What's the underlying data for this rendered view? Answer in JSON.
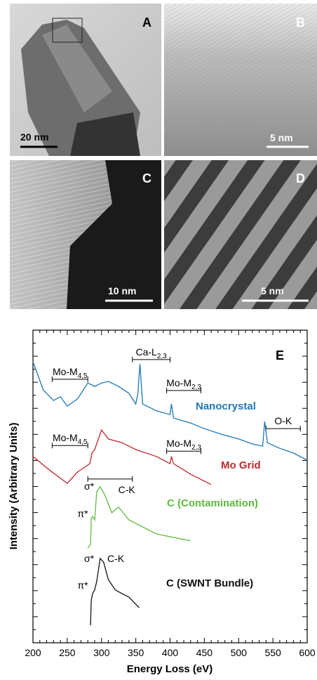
{
  "panels": [
    {
      "letter": "A",
      "scalebar": "20 nm"
    },
    {
      "letter": "B",
      "scalebar": "5 nm"
    },
    {
      "letter": "C",
      "scalebar": "10 nm"
    },
    {
      "letter": "D",
      "scalebar": "5 nm"
    }
  ],
  "chart_data": {
    "type": "line",
    "panel_letter": "E",
    "xlabel": "Energy Loss (eV)",
    "ylabel": "Intensity (Arbitrary Units)",
    "xlim": [
      200,
      600
    ],
    "xticks": [
      200,
      250,
      300,
      350,
      400,
      450,
      500,
      550,
      600
    ],
    "ylim": [
      0,
      100
    ],
    "series": [
      {
        "name": "Nanocrystal",
        "color": "#1f77b4",
        "x": [
          200,
          215,
          230,
          240,
          250,
          265,
          280,
          290,
          300,
          310,
          325,
          340,
          350,
          353,
          356,
          360,
          380,
          400,
          402,
          405,
          430,
          450,
          475,
          500,
          520,
          535,
          538,
          542,
          560,
          580,
          600
        ],
        "values": [
          89.9,
          80.9,
          77.5,
          78.7,
          75.7,
          78.0,
          83.1,
          82.0,
          83.1,
          83.6,
          82.0,
          79.8,
          76.4,
          79.8,
          89.2,
          76.4,
          74.2,
          73.0,
          76.4,
          71.9,
          70.3,
          68.5,
          66.7,
          65.2,
          63.6,
          62.9,
          70.8,
          64.0,
          62.2,
          60.7,
          58.4
        ]
      },
      {
        "name": "Mo Grid",
        "color": "#c0282d",
        "x": [
          200,
          225,
          250,
          265,
          283,
          286,
          290,
          300,
          310,
          330,
          350,
          380,
          400,
          402,
          405,
          430,
          460
        ],
        "values": [
          59.6,
          55.1,
          51.0,
          54.6,
          57.3,
          60.7,
          61.8,
          68.1,
          65.2,
          64.0,
          61.8,
          59.6,
          57.3,
          59.6,
          57.3,
          53.9,
          50.6
        ]
      },
      {
        "name": "C (Contamination)",
        "color": "#5dbb3f",
        "x": [
          280,
          284,
          285,
          287,
          290,
          293,
          298,
          305,
          315,
          325,
          340,
          380,
          430
        ],
        "values": [
          30.3,
          31.5,
          39.8,
          40.4,
          39.3,
          48.3,
          49.9,
          47.2,
          41.6,
          43.4,
          39.3,
          34.8,
          32.6
        ]
      },
      {
        "name": "C (SWNT Bundle)",
        "color": "#111111",
        "x": [
          284,
          285,
          287,
          290,
          293,
          298,
          303,
          310,
          320,
          330,
          340,
          355
        ],
        "values": [
          5.6,
          13.5,
          15.7,
          16.9,
          19.6,
          27.0,
          25.8,
          20.2,
          16.9,
          15.7,
          14.6,
          11.2
        ]
      }
    ],
    "annotations": [
      {
        "text": "Mo-M",
        "sub": "4,5",
        "range": [
          228,
          280
        ],
        "y": 84.3
      },
      {
        "text": "Ca-L",
        "sub": "2,3",
        "range": [
          345,
          400
        ],
        "y": 90.6
      },
      {
        "text": "Mo-M",
        "sub": "2,3",
        "range": [
          395,
          445
        ],
        "y": 80.7
      },
      {
        "text": "O-K",
        "range": [
          540,
          590
        ],
        "y": 68.5
      },
      {
        "text": "Mo-M",
        "sub": "4,5",
        "range": [
          228,
          280
        ],
        "y": 63.1
      },
      {
        "text": "Mo-M",
        "sub": "2,3",
        "range": [
          395,
          445
        ],
        "y": 61.3
      },
      {
        "text": "C-K",
        "range": [
          280,
          345
        ],
        "y": 52.4
      },
      {
        "text": "σ*"
      },
      {
        "text": "π*"
      },
      {
        "text": "σ*"
      },
      {
        "text": "π*"
      },
      {
        "text": "C-K"
      }
    ]
  }
}
